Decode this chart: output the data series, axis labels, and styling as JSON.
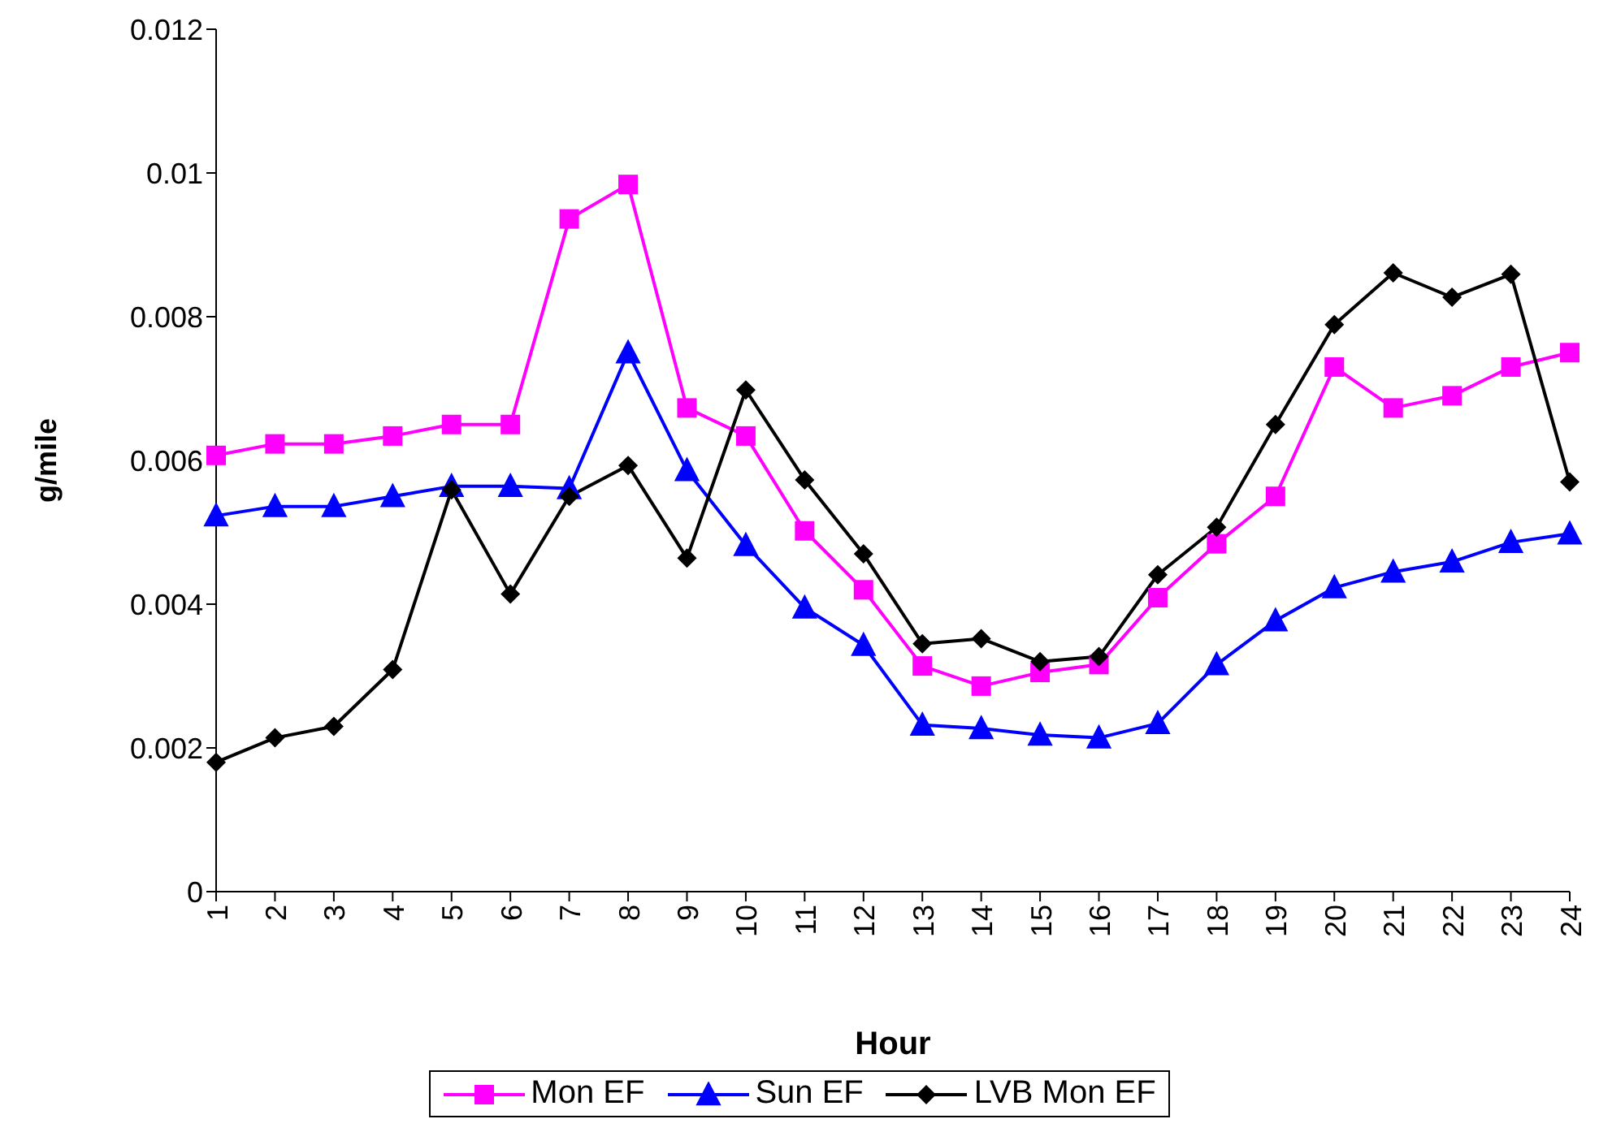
{
  "chart_data": {
    "type": "line",
    "xlabel": "Hour",
    "ylabel": "g/mile",
    "categories": [
      "1",
      "2",
      "3",
      "4",
      "5",
      "6",
      "7",
      "8",
      "9",
      "10",
      "11",
      "12",
      "13",
      "14",
      "15",
      "16",
      "17",
      "18",
      "19",
      "20",
      "21",
      "22",
      "23",
      "24"
    ],
    "ylim": [
      0,
      0.012
    ],
    "yticks": [
      0,
      0.002,
      0.004,
      0.006,
      0.008,
      {
        "value": 0.01,
        "label": "0.01"
      },
      0.012
    ],
    "grid": false,
    "legend": "bottom",
    "line_style": "solid",
    "series": [
      {
        "name": "Mon EF",
        "color": "#ff00ff",
        "marker": "square",
        "values": [
          0.00607,
          0.00623,
          0.00623,
          0.00634,
          0.0065,
          0.0065,
          0.00936,
          0.00984,
          0.00673,
          0.00634,
          0.00502,
          0.0042,
          0.00314,
          0.00286,
          0.00305,
          0.00316,
          0.00409,
          0.00484,
          0.0055,
          0.0073,
          0.00673,
          0.0069,
          0.0073,
          0.0075
        ]
      },
      {
        "name": "Sun EF",
        "color": "#0000ff",
        "marker": "triangle",
        "values": [
          0.00523,
          0.00536,
          0.00536,
          0.0055,
          0.00564,
          0.00564,
          0.00561,
          0.0075,
          0.00586,
          0.00482,
          0.00395,
          0.00343,
          0.00232,
          0.00227,
          0.00218,
          0.00214,
          0.00234,
          0.00316,
          0.00377,
          0.00423,
          0.00445,
          0.00459,
          0.00486,
          0.00498
        ]
      },
      {
        "name": "LVB Mon EF",
        "color": "#000000",
        "marker": "diamond",
        "values": [
          0.0018,
          0.00214,
          0.0023,
          0.00309,
          0.00559,
          0.00414,
          0.0055,
          0.00593,
          0.00464,
          0.00698,
          0.00573,
          0.0047,
          0.00345,
          0.00352,
          0.0032,
          0.00327,
          0.00441,
          0.00507,
          0.0065,
          0.00789,
          0.00861,
          0.00827,
          0.00859,
          0.0057
        ]
      }
    ]
  }
}
